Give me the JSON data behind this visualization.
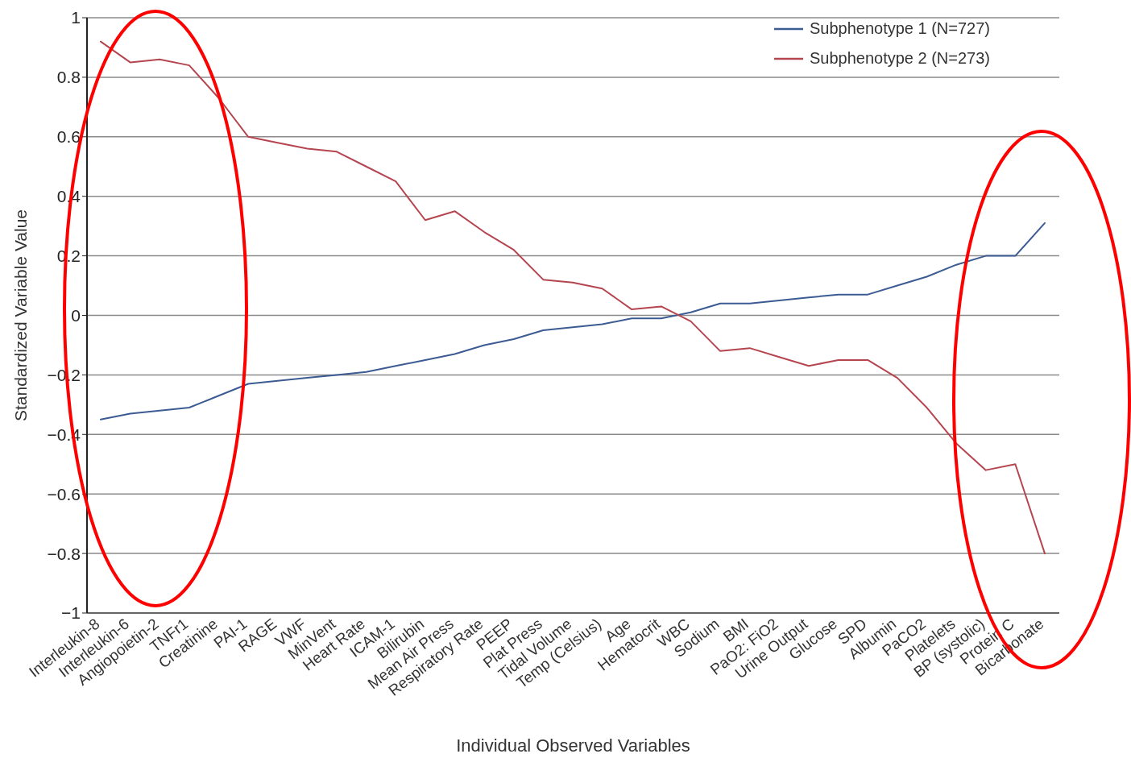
{
  "chart_data": {
    "type": "line",
    "xlabel": "Individual Observed Variables",
    "ylabel": "Standardized Variable Value",
    "categories": [
      "Interleukin-8",
      "Interleukin-6",
      "Angiopoietin-2",
      "TNFr1",
      "Creatinine",
      "PAI-1",
      "RAGE",
      "VWF",
      "MinVent",
      "Heart Rate",
      "ICAM-1",
      "Bilirubin",
      "Mean Air Press",
      "Respiratory Rate",
      "PEEP",
      "Plat Press",
      "Tidal Volume",
      "Temp (Celsius)",
      "Age",
      "Hematocrit",
      "WBC",
      "Sodium",
      "BMI",
      "PaO2: FiO2",
      "Urine Output",
      "Glucose",
      "SPD",
      "Albumin",
      "PaCO2",
      "Platelets",
      "BP (systolic)",
      "Protein C",
      "Bicarbonate"
    ],
    "series": [
      {
        "name": "Subphenotype 1 (N=727)",
        "color": "#3b5b92",
        "values": [
          -0.35,
          -0.33,
          -0.32,
          -0.31,
          -0.27,
          -0.23,
          -0.22,
          -0.21,
          -0.2,
          -0.19,
          -0.17,
          -0.15,
          -0.13,
          -0.1,
          -0.08,
          -0.05,
          -0.04,
          -0.03,
          -0.01,
          -0.01,
          0.01,
          0.04,
          0.04,
          0.05,
          0.06,
          0.07,
          0.07,
          0.1,
          0.13,
          0.17,
          0.2,
          0.2,
          0.31
        ]
      },
      {
        "name": "Subphenotype 2 (N=273)",
        "color": "#b5454f",
        "values": [
          0.92,
          0.85,
          0.86,
          0.84,
          0.73,
          0.6,
          0.58,
          0.56,
          0.55,
          0.5,
          0.45,
          0.32,
          0.35,
          0.28,
          0.22,
          0.12,
          0.11,
          0.09,
          0.02,
          0.03,
          -0.02,
          -0.12,
          -0.11,
          -0.14,
          -0.17,
          -0.15,
          -0.15,
          -0.21,
          -0.31,
          -0.43,
          -0.52,
          -0.5,
          -0.8
        ]
      }
    ],
    "ylim": [
      -1,
      1
    ],
    "yticks": [
      {
        "value": -1,
        "label": "−1"
      },
      {
        "value": -0.8,
        "label": "−0.8"
      },
      {
        "value": -0.6,
        "label": "−0.6"
      },
      {
        "value": -0.4,
        "label": "−0.4"
      },
      {
        "value": -0.2,
        "label": "−0.2"
      },
      0,
      0.2,
      0.4,
      0.6,
      0.8,
      1
    ],
    "grid": "y",
    "legend": "top right",
    "marker": "none",
    "line_style": "solid"
  }
}
